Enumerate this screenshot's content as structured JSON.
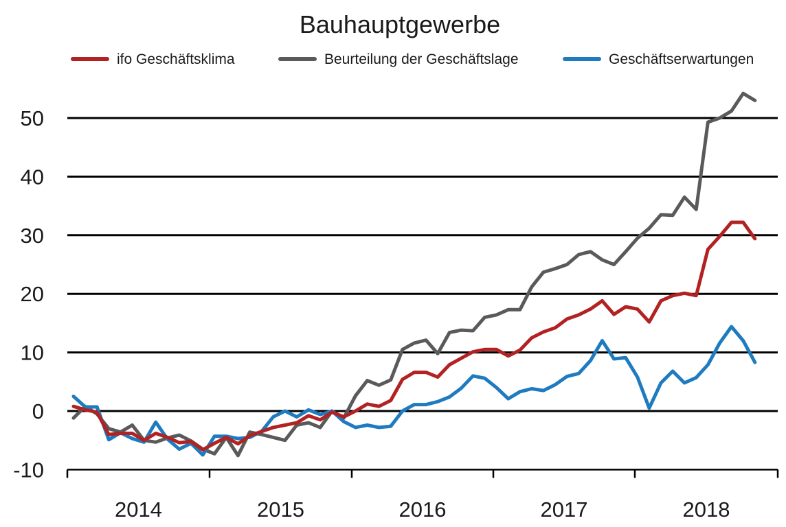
{
  "chart_data": {
    "type": "line",
    "title": "Bauhauptgewerbe",
    "xlabel": "",
    "ylabel": "",
    "ylim": [
      -10,
      55
    ],
    "yticks": [
      50,
      40,
      30,
      20,
      10,
      0,
      -10
    ],
    "ytick_labels": [
      "50",
      "40",
      "30",
      "20",
      "10",
      "0",
      "-10"
    ],
    "xtick_labels": [
      "2014",
      "2015",
      "2016",
      "2017",
      "2018"
    ],
    "grid": true,
    "legend": "top",
    "start_month": "2013-12",
    "months": 59,
    "series": [
      {
        "name": "ifo Geschäftsklima",
        "color": "#b22222",
        "values": [
          0.8,
          0.2,
          -0.2,
          -4,
          -3.8,
          -3.8,
          -5,
          -3.8,
          -4.5,
          -5.4,
          -5.2,
          -6.6,
          -5.5,
          -4.5,
          -5.6,
          -4.2,
          -3.5,
          -2.8,
          -2.4,
          -2,
          -0.8,
          -1.5,
          -0.2,
          -1,
          0,
          1.2,
          0.8,
          1.8,
          5.4,
          6.6,
          6.6,
          5.8,
          7.9,
          9,
          10.1,
          10.5,
          10.5,
          9.4,
          10.4,
          12.5,
          13.5,
          14.2,
          15.7,
          16.4,
          17.4,
          18.8,
          16.5,
          17.8,
          17.4,
          15.2,
          18.8,
          19.7,
          20.1,
          19.7,
          27.6,
          29.8,
          32.2,
          32.2,
          29.4
        ]
      },
      {
        "name": "Beurteilung der Geschäftslage",
        "color": "#5a5a5a",
        "values": [
          -1.2,
          0.8,
          -0.5,
          -3,
          -3.6,
          -2.4,
          -5,
          -5.3,
          -4.6,
          -4.1,
          -5.1,
          -6.5,
          -7.3,
          -4.5,
          -7.6,
          -3.6,
          -4,
          -4.5,
          -5,
          -2.4,
          -2,
          -2.8,
          0,
          -1.2,
          2.6,
          5.2,
          4.4,
          5.3,
          10.5,
          11.6,
          12.1,
          9.8,
          13.4,
          13.8,
          13.7,
          16,
          16.4,
          17.3,
          17.3,
          21.2,
          23.7,
          24.3,
          25,
          26.7,
          27.2,
          25.8,
          25,
          27.2,
          29.5,
          31.2,
          33.5,
          33.4,
          36.5,
          34.4,
          49.3,
          50,
          51.2,
          54.2,
          53
        ]
      },
      {
        "name": "Geschäftserwartungen",
        "color": "#1e7bbf",
        "values": [
          2.5,
          0.7,
          0.7,
          -4.9,
          -3.7,
          -4.7,
          -5.3,
          -1.9,
          -4.8,
          -6.5,
          -5.5,
          -7.5,
          -4.3,
          -4.3,
          -4.7,
          -4.5,
          -3.5,
          -1,
          0,
          -1,
          0.2,
          -0.6,
          0,
          -1.8,
          -2.8,
          -2.4,
          -2.8,
          -2.6,
          0,
          1.1,
          1.1,
          1.6,
          2.4,
          3.9,
          6,
          5.6,
          4,
          2.1,
          3.3,
          3.8,
          3.5,
          4.5,
          5.9,
          6.4,
          8.6,
          12,
          8.9,
          9.1,
          5.8,
          0.5,
          4.8,
          6.8,
          4.8,
          5.7,
          7.9,
          11.6,
          14.4,
          12,
          8.3
        ]
      }
    ]
  }
}
